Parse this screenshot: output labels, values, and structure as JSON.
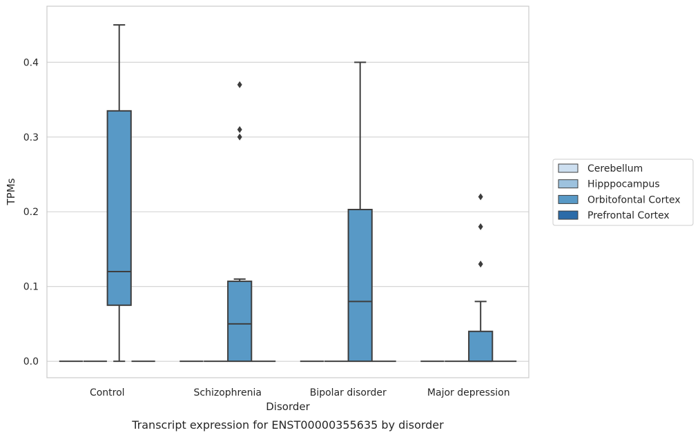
{
  "caption": "Transcript expression for ENST00000355635 by disorder",
  "chart_data": {
    "type": "box",
    "title": "",
    "xlabel": "Disorder",
    "ylabel": "TPMs",
    "categories": [
      "Control",
      "Schizophrenia",
      "Bipolar disorder",
      "Major depression"
    ],
    "ylim": [
      -0.022,
      0.475
    ],
    "yticks": [
      0.0,
      0.1,
      0.2,
      0.3,
      0.4
    ],
    "ytick_labels": [
      "0.0",
      "0.1",
      "0.2",
      "0.3",
      "0.4"
    ],
    "grid": "horizontal",
    "legend": {
      "placement": "right",
      "entries": [
        "Cerebellum",
        "Hipppocampus",
        "Orbitofontal Cortex",
        "Prefrontal Cortex"
      ]
    },
    "series": [
      {
        "name": "Cerebellum",
        "color": "#cddff0",
        "boxes": [
          {
            "category": "Control",
            "whislo": 0,
            "q1": 0,
            "med": 0,
            "q3": 0,
            "whishi": 0,
            "fliers": []
          },
          {
            "category": "Schizophrenia",
            "whislo": 0,
            "q1": 0,
            "med": 0,
            "q3": 0,
            "whishi": 0,
            "fliers": []
          },
          {
            "category": "Bipolar disorder",
            "whislo": 0,
            "q1": 0,
            "med": 0,
            "q3": 0,
            "whishi": 0,
            "fliers": []
          },
          {
            "category": "Major depression",
            "whislo": 0,
            "q1": 0,
            "med": 0,
            "q3": 0,
            "whishi": 0,
            "fliers": []
          }
        ]
      },
      {
        "name": "Hipppocampus",
        "color": "#9dc2de",
        "boxes": [
          {
            "category": "Control",
            "whislo": 0,
            "q1": 0,
            "med": 0,
            "q3": 0,
            "whishi": 0,
            "fliers": []
          },
          {
            "category": "Schizophrenia",
            "whislo": 0,
            "q1": 0,
            "med": 0,
            "q3": 0,
            "whishi": 0,
            "fliers": []
          },
          {
            "category": "Bipolar disorder",
            "whislo": 0,
            "q1": 0,
            "med": 0,
            "q3": 0,
            "whishi": 0,
            "fliers": []
          },
          {
            "category": "Major depression",
            "whislo": 0,
            "q1": 0,
            "med": 0,
            "q3": 0,
            "whishi": 0,
            "fliers": []
          }
        ]
      },
      {
        "name": "Orbitofontal Cortex",
        "color": "#5899c6",
        "boxes": [
          {
            "category": "Control",
            "whislo": 0,
            "q1": 0.075,
            "med": 0.12,
            "q3": 0.335,
            "whishi": 0.45,
            "fliers": []
          },
          {
            "category": "Schizophrenia",
            "whislo": 0,
            "q1": 0,
            "med": 0.05,
            "q3": 0.107,
            "whishi": 0.11,
            "fliers": [
              0.37,
              0.31,
              0.3
            ]
          },
          {
            "category": "Bipolar disorder",
            "whislo": 0,
            "q1": 0,
            "med": 0.08,
            "q3": 0.203,
            "whishi": 0.4,
            "fliers": []
          },
          {
            "category": "Major depression",
            "whislo": 0,
            "q1": 0,
            "med": 0,
            "q3": 0.04,
            "whishi": 0.08,
            "fliers": [
              0.22,
              0.18,
              0.13
            ]
          }
        ]
      },
      {
        "name": "Prefrontal Cortex",
        "color": "#2b6ba8",
        "boxes": [
          {
            "category": "Control",
            "whislo": 0,
            "q1": 0,
            "med": 0,
            "q3": 0,
            "whishi": 0,
            "fliers": []
          },
          {
            "category": "Schizophrenia",
            "whislo": 0,
            "q1": 0,
            "med": 0,
            "q3": 0,
            "whishi": 0,
            "fliers": []
          },
          {
            "category": "Bipolar disorder",
            "whislo": 0,
            "q1": 0,
            "med": 0,
            "q3": 0,
            "whishi": 0,
            "fliers": []
          },
          {
            "category": "Major depression",
            "whislo": 0,
            "q1": 0,
            "med": 0,
            "q3": 0,
            "whishi": 0,
            "fliers": []
          }
        ]
      }
    ]
  }
}
